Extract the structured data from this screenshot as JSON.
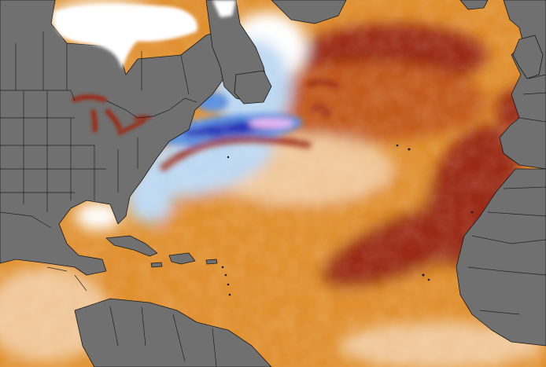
{
  "map": {
    "type": "sea-surface-temperature-anomaly",
    "region": "north-atlantic",
    "colors": {
      "land": "#707070",
      "land_border": "#1a1a1a",
      "ocean_warm_light": "#f0c79a",
      "ocean_warm": "#e0902f",
      "ocean_warm_strong": "#c25a1a",
      "ocean_hot": "#9a2a12",
      "ocean_neutral": "#ffffff",
      "ocean_cool_light": "#bcd8f2",
      "ocean_cool": "#5a8fe0",
      "ocean_cold": "#2630b8",
      "ocean_extreme_cold": "#e9b7f2",
      "ice": "#ffffff"
    }
  }
}
